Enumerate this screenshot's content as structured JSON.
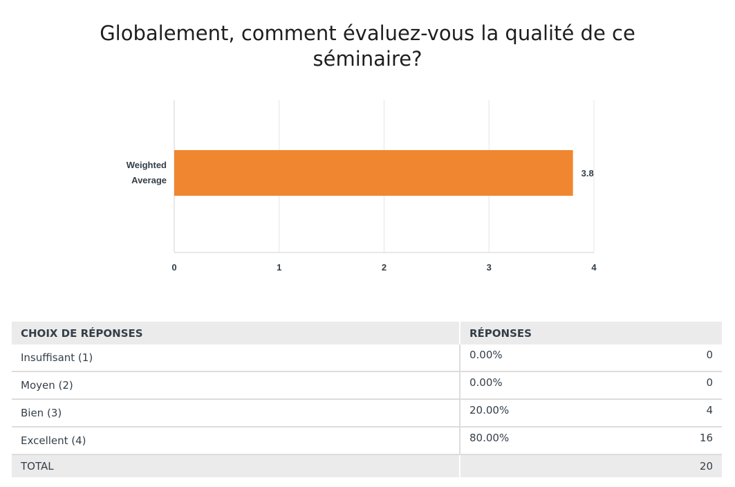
{
  "title": "Globalement, comment évaluez-vous la qualité de ce séminaire?",
  "chart_data": {
    "type": "bar",
    "orientation": "horizontal",
    "categories": [
      "Weighted Average"
    ],
    "category_lines": [
      [
        "Weighted",
        "Average"
      ]
    ],
    "values": [
      3.8
    ],
    "data_labels": [
      "3.8"
    ],
    "xlim": [
      0,
      4
    ],
    "xticks": [
      "0",
      "1",
      "2",
      "3",
      "4"
    ],
    "bar_color": "#f0862f",
    "grid": true,
    "title": "",
    "xlabel": "",
    "ylabel": ""
  },
  "table": {
    "headers": {
      "choice": "CHOIX DE RÉPONSES",
      "responses": "RÉPONSES"
    },
    "rows": [
      {
        "choice": "Insuffisant (1)",
        "percent": "0.00%",
        "count": "0"
      },
      {
        "choice": "Moyen (2)",
        "percent": "0.00%",
        "count": "0"
      },
      {
        "choice": "Bien (3)",
        "percent": "20.00%",
        "count": "4"
      },
      {
        "choice": "Excellent (4)",
        "percent": "80.00%",
        "count": "16"
      }
    ],
    "total": {
      "label": "TOTAL",
      "count": "20"
    }
  }
}
